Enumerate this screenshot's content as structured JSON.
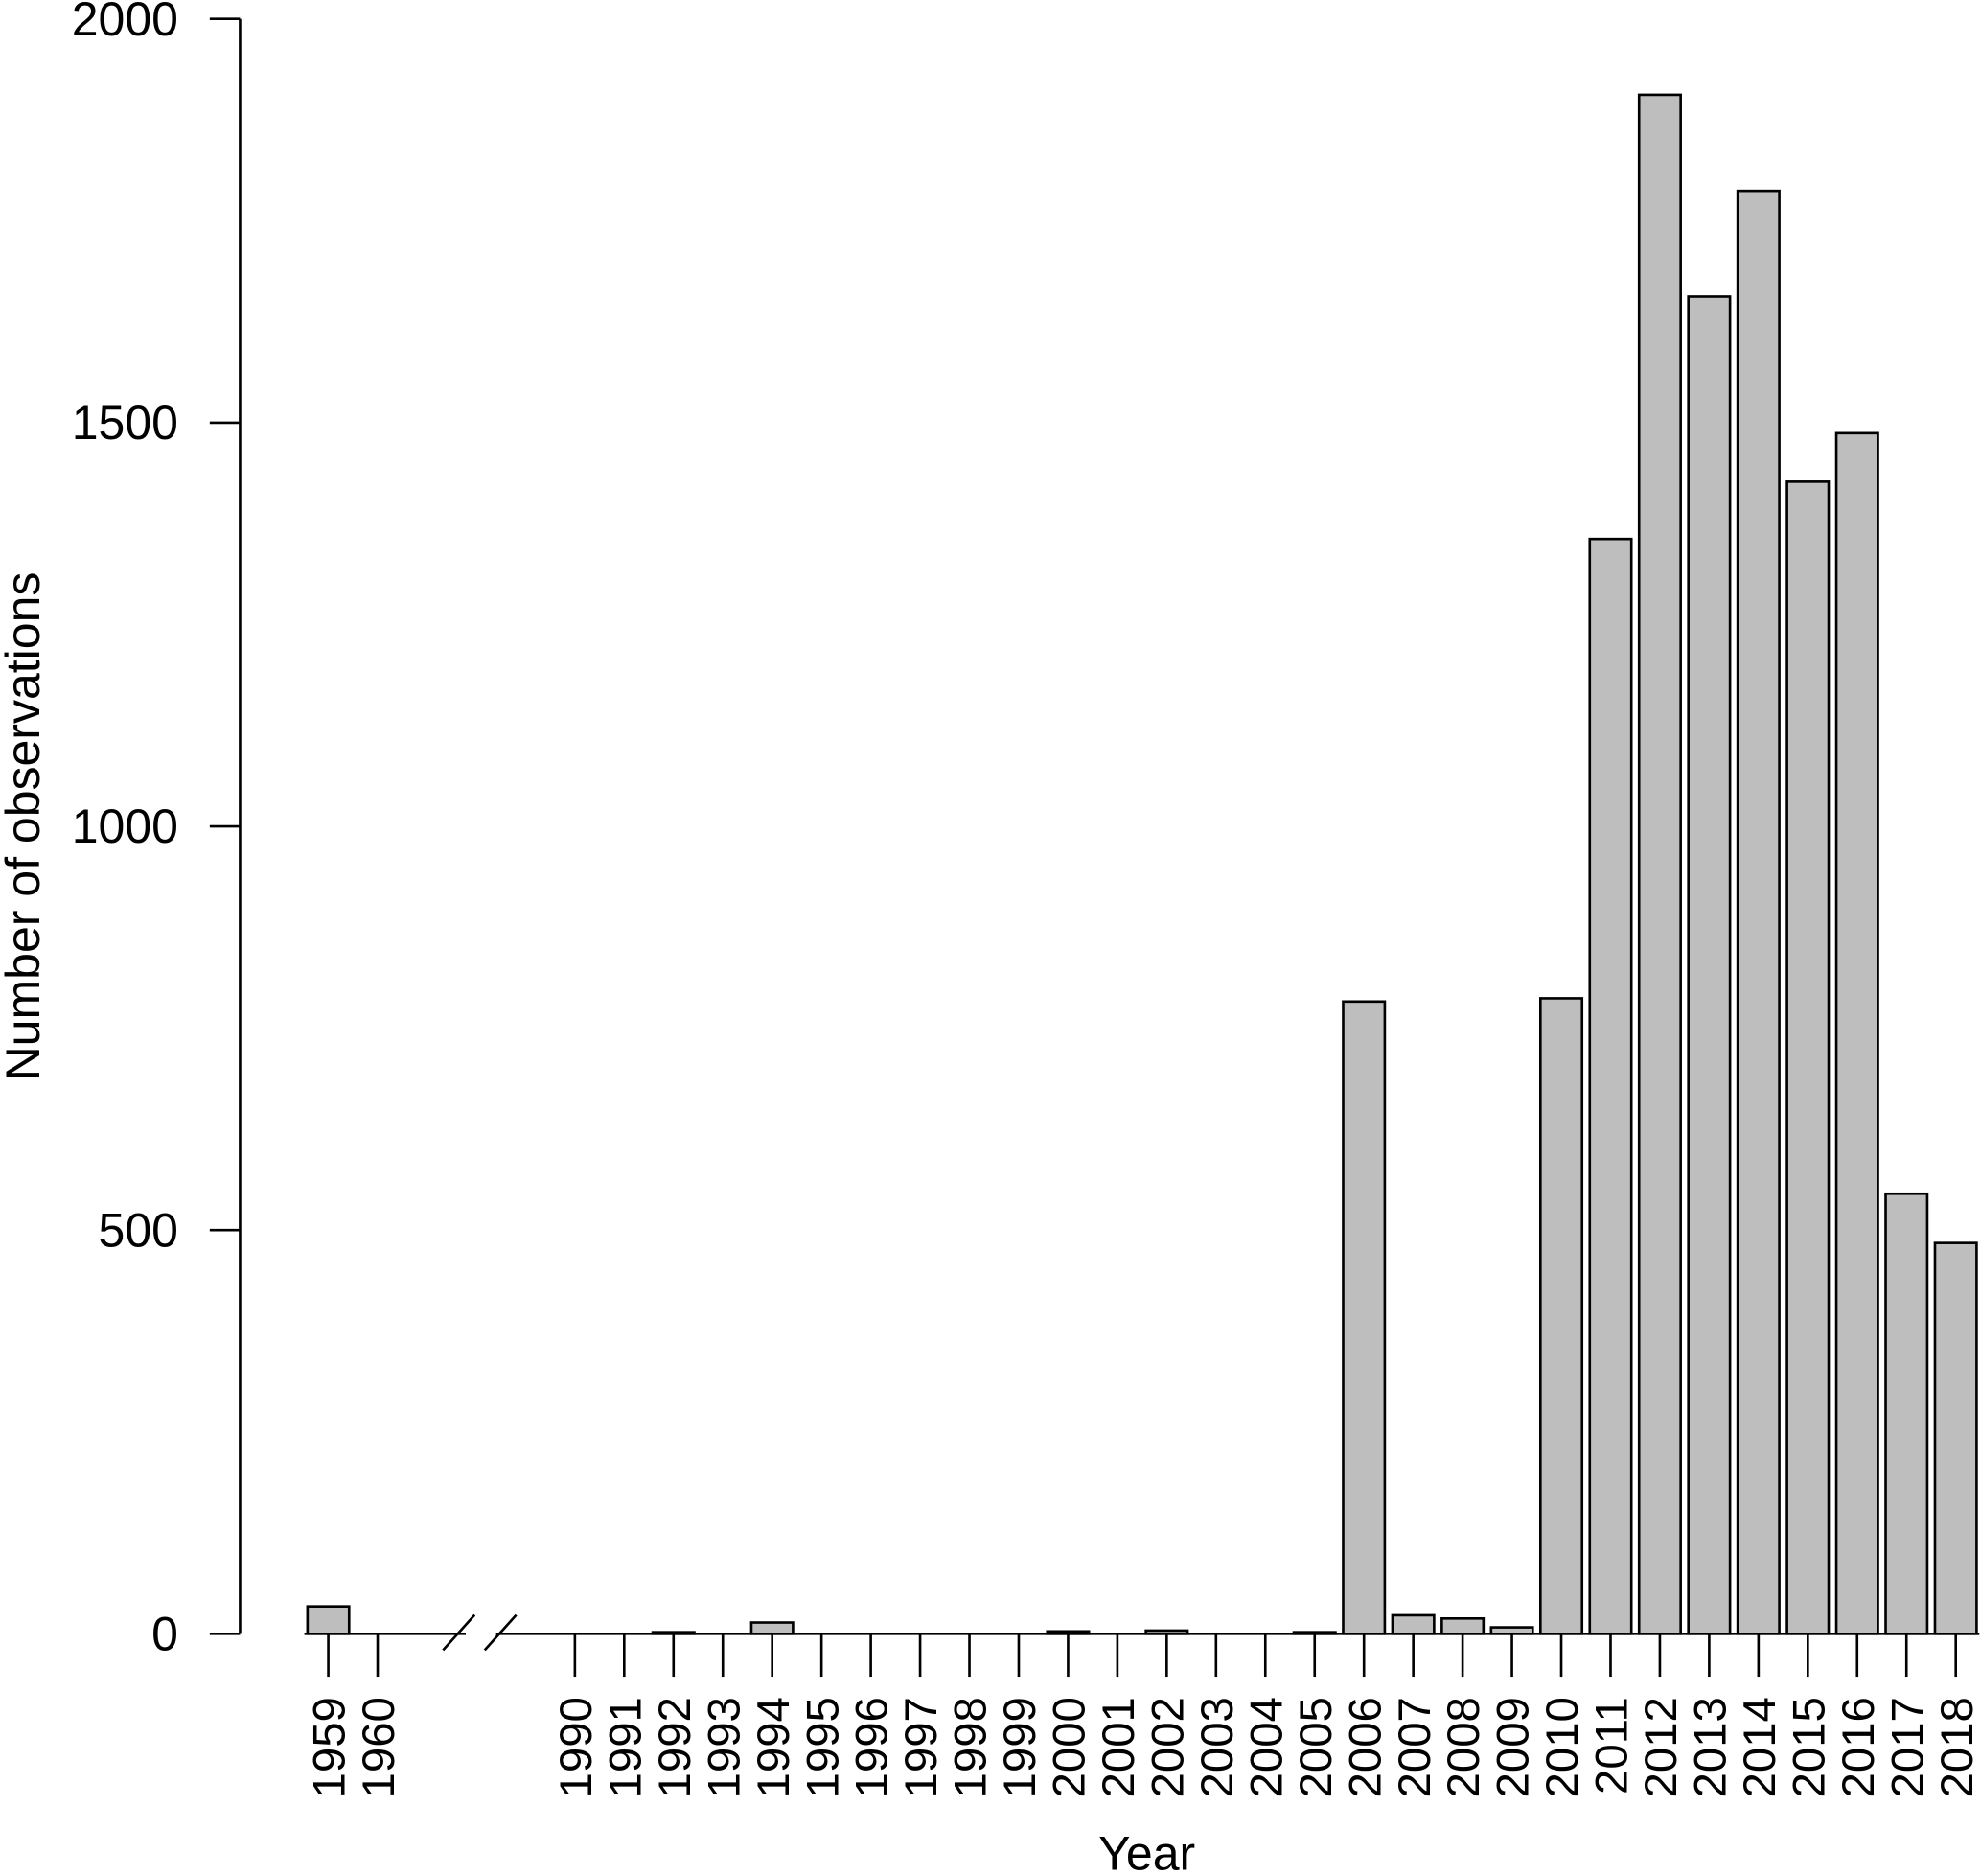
{
  "chart_data": {
    "type": "bar",
    "title": "",
    "xlabel": "Year",
    "ylabel": "Number of observations",
    "ylim": [
      0,
      2000
    ],
    "yticks": [
      "0",
      "500",
      "1000",
      "1500",
      "2000"
    ],
    "axis_break": "between 1960 and 1990",
    "bar_color": "#bebebe",
    "categories": [
      "1959",
      "1960",
      "1990",
      "1991",
      "1992",
      "1993",
      "1994",
      "1995",
      "1996",
      "1997",
      "1998",
      "1999",
      "2000",
      "2001",
      "2002",
      "2003",
      "2004",
      "2005",
      "2006",
      "2007",
      "2008",
      "2009",
      "2010",
      "2011",
      "2012",
      "2013",
      "2014",
      "2015",
      "2016",
      "2017",
      "2018"
    ],
    "values": [
      34,
      0,
      0,
      0,
      2,
      0,
      14,
      0,
      0,
      0,
      0,
      0,
      3,
      0,
      4,
      0,
      0,
      2,
      783,
      23,
      19,
      8,
      787,
      1356,
      1906,
      1656,
      1787,
      1427,
      1487,
      545,
      484
    ]
  }
}
